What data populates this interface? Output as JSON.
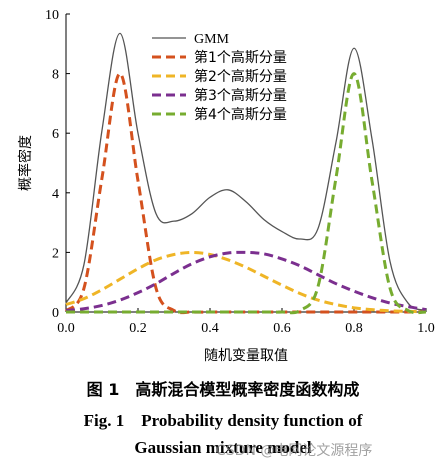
{
  "chart_data": {
    "type": "line",
    "title": "",
    "xlabel": "随机变量取值",
    "ylabel": "概率密度",
    "xlim": [
      0.0,
      1.0
    ],
    "ylim": [
      0,
      10
    ],
    "xticks": [
      "0.0",
      "0.2",
      "0.4",
      "0.6",
      "0.8",
      "1.0"
    ],
    "yticks": [
      "0",
      "2",
      "4",
      "6",
      "8",
      "10"
    ],
    "grid": false,
    "legend_position": "top-center",
    "x": [
      0.0,
      0.05,
      0.1,
      0.15,
      0.2,
      0.25,
      0.3,
      0.35,
      0.4,
      0.45,
      0.5,
      0.55,
      0.6,
      0.65,
      0.7,
      0.75,
      0.8,
      0.85,
      0.9,
      0.95,
      1.0
    ],
    "series": [
      {
        "name": "GMM",
        "color": "#555555",
        "dash": "solid",
        "values": [
          0.3,
          1.6,
          6.1,
          9.35,
          6.0,
          3.3,
          3.05,
          3.3,
          3.85,
          4.1,
          3.7,
          3.1,
          2.7,
          2.45,
          2.8,
          5.7,
          8.85,
          5.8,
          1.7,
          0.3,
          0.05
        ]
      },
      {
        "name": "第1个高斯分量",
        "color": "#d4511e",
        "dash": "dashed",
        "values": [
          0.03,
          0.8,
          4.5,
          8.0,
          4.4,
          0.8,
          0.05,
          0.0,
          0.0,
          0.0,
          0.0,
          0.0,
          0.0,
          0.0,
          0.0,
          0.0,
          0.0,
          0.0,
          0.0,
          0.0,
          0.0
        ]
      },
      {
        "name": "第2个高斯分量",
        "color": "#efb526",
        "dash": "dashed",
        "values": [
          0.25,
          0.45,
          0.75,
          1.1,
          1.45,
          1.75,
          1.93,
          2.0,
          1.93,
          1.75,
          1.5,
          1.2,
          0.9,
          0.62,
          0.4,
          0.25,
          0.14,
          0.08,
          0.04,
          0.02,
          0.01
        ]
      },
      {
        "name": "第3个高斯分量",
        "color": "#7b2f8f",
        "dash": "dashed",
        "values": [
          0.05,
          0.11,
          0.22,
          0.4,
          0.65,
          0.95,
          1.3,
          1.62,
          1.85,
          1.98,
          2.0,
          1.95,
          1.78,
          1.55,
          1.25,
          0.95,
          0.7,
          0.48,
          0.3,
          0.18,
          0.08
        ]
      },
      {
        "name": "第4个高斯分量",
        "color": "#77ac30",
        "dash": "dashed",
        "values": [
          0.0,
          0.0,
          0.0,
          0.0,
          0.0,
          0.0,
          0.0,
          0.0,
          0.0,
          0.0,
          0.0,
          0.0,
          0.0,
          0.05,
          0.85,
          4.5,
          8.0,
          4.4,
          0.8,
          0.05,
          0.0
        ]
      }
    ]
  },
  "caption": {
    "cn": "图 1　高斯混合模型概率密度函数构成",
    "en_line1": "Fig. 1　Probability density function of",
    "en_line2": "Gaussian mixture model"
  },
  "watermark": "CSDN @电网论文源程序"
}
